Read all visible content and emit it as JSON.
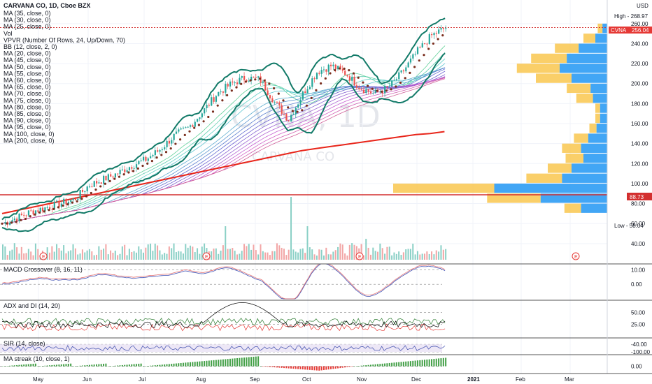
{
  "header": {
    "title": "CARVANA CO, 1D, Cboe BZX",
    "currency": "USD"
  },
  "watermark": {
    "symbol_big": "CVNA, 1D",
    "name": "CARVANA CO"
  },
  "legend": [
    "MA (35, close, 0)",
    "MA (30, close, 0)",
    "MA (25, close, 0)",
    "Vol",
    "VPVR (Number Of Rows, 24, Up/Down, 70)",
    "BB (12, close, 2, 0)",
    "MA (20, close, 0)",
    "MA (45, close, 0)",
    "MA (50, close, 0)",
    "MA (55, close, 0)",
    "MA (60, close, 0)",
    "MA (65, close, 0)",
    "MA (70, close, 0)",
    "MA (75, close, 0)",
    "MA (80, close, 0)",
    "MA (85, close, 0)",
    "MA (90, close, 0)",
    "MA (95, close, 0)",
    "MA (100, close, 0)",
    "MA (200, close, 0)"
  ],
  "price_tags": {
    "high": "High - 268.97",
    "current_symbol": "CVNA",
    "current_value": "256.04",
    "level": "88.73",
    "low": "Low - 58.04"
  },
  "pane_titles": {
    "macd": "MACD Crossover (8, 16, 11)",
    "adx": "ADX and DI (14, 20)",
    "sir": "SIR (14, close)",
    "streak": "MA streak (10, close, 1)"
  },
  "colors": {
    "up": "#26a69a",
    "down": "#ef5350",
    "bb": "#127a68",
    "ma200": "#e8251a",
    "level": "#d32f2f",
    "dots": "#7a2e1e",
    "macd": "#3f51b5",
    "signal": "#e57373"
  },
  "chart_data": {
    "type": "candlestick",
    "x_tick_labels": [
      "May",
      "Jun",
      "Jul",
      "Aug",
      "Sep",
      "Oct",
      "Nov",
      "Dec",
      "2021",
      "Feb",
      "Mar"
    ],
    "earnings_marker": "E",
    "earnings_months": [
      "May",
      "Aug",
      "Nov",
      "Feb"
    ],
    "main": {
      "y_ticks": [
        40,
        60,
        80,
        100,
        120,
        140,
        160,
        180,
        200,
        220,
        240,
        260
      ],
      "ylim": [
        30,
        275
      ],
      "high": 268.97,
      "low": 58.04,
      "last": 256.04,
      "horizontal_level": 88.73,
      "closes_weekly": [
        60,
        66,
        72,
        76,
        80,
        84,
        98,
        104,
        110,
        118,
        124,
        134,
        148,
        156,
        172,
        190,
        200,
        206,
        204,
        182,
        164,
        190,
        212,
        218,
        210,
        196,
        190,
        196,
        212,
        232,
        248,
        256
      ],
      "ma200": [
        70,
        73,
        76,
        79,
        82,
        85,
        88,
        91,
        94,
        97,
        100,
        103,
        106,
        109,
        112,
        115,
        118,
        121,
        124,
        127,
        130,
        133,
        135,
        137,
        139,
        141,
        143,
        145,
        147,
        149,
        150,
        152
      ]
    },
    "volume_profile": {
      "price_bins": [
        70,
        80,
        90,
        100,
        110,
        120,
        130,
        140,
        150,
        160,
        170,
        180,
        190,
        200,
        210,
        220,
        230,
        240,
        250
      ],
      "up": [
        22,
        56,
        95,
        38,
        30,
        20,
        22,
        16,
        9,
        6,
        6,
        12,
        14,
        30,
        40,
        34,
        24,
        10,
        4
      ],
      "down": [
        14,
        45,
        85,
        30,
        20,
        15,
        16,
        12,
        6,
        4,
        4,
        14,
        20,
        30,
        36,
        30,
        20,
        10,
        4
      ]
    },
    "macd": {
      "y_ticks": [
        10,
        0
      ],
      "ylim": [
        -10,
        14
      ]
    },
    "adx": {
      "y_ticks": [
        50,
        25
      ],
      "ylim": [
        0,
        75
      ]
    },
    "sir": {
      "y_ticks": [
        -40,
        -100
      ],
      "ylim": [
        -110,
        10
      ]
    },
    "streak": {
      "y_ticks": [
        0
      ],
      "ylim": [
        -5,
        8
      ]
    }
  }
}
